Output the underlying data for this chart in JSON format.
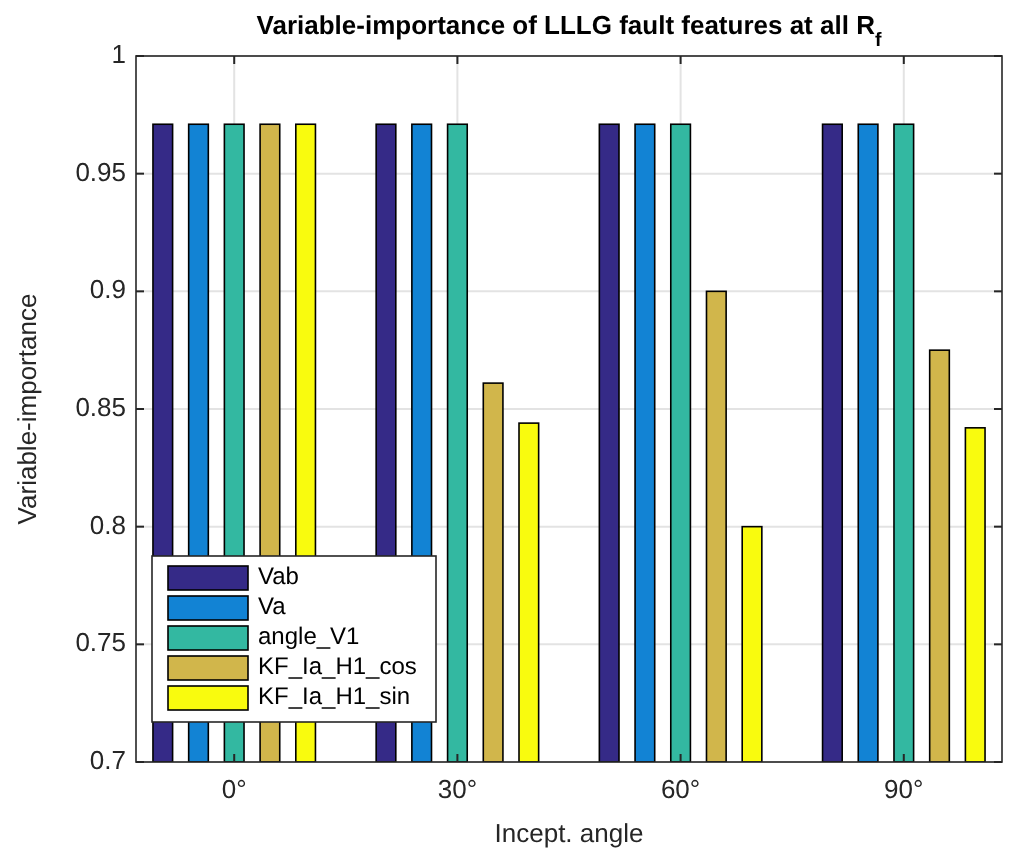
{
  "chart_data": {
    "type": "bar",
    "title": "Variable-importance of LLLG fault features at all R$_{f}$",
    "xlabel": "Incept. angle",
    "ylabel": "Variable-importance",
    "categories": [
      "0°",
      "30°",
      "60°",
      "90°"
    ],
    "series": [
      {
        "name": "Vab",
        "color": "#352a87",
        "values": [
          0.971,
          0.971,
          0.971,
          0.971
        ]
      },
      {
        "name": "Va",
        "color": "#1283d4",
        "values": [
          0.971,
          0.971,
          0.971,
          0.971
        ]
      },
      {
        "name": "angle_V1",
        "color": "#33b8a1",
        "values": [
          0.971,
          0.971,
          0.971,
          0.971
        ]
      },
      {
        "name": "KF_Ia_H1_cos",
        "color": "#d1b64b",
        "values": [
          0.971,
          0.861,
          0.9,
          0.875
        ]
      },
      {
        "name": "KF_Ia_H1_sin",
        "color": "#f9fb0e",
        "values": [
          0.971,
          0.844,
          0.8,
          0.842
        ]
      }
    ],
    "ylim": [
      0.7,
      1
    ],
    "yticks": [
      0.7,
      0.75,
      0.8,
      0.85,
      0.9,
      0.95,
      1
    ],
    "grid": true,
    "legend": "bottom left"
  }
}
